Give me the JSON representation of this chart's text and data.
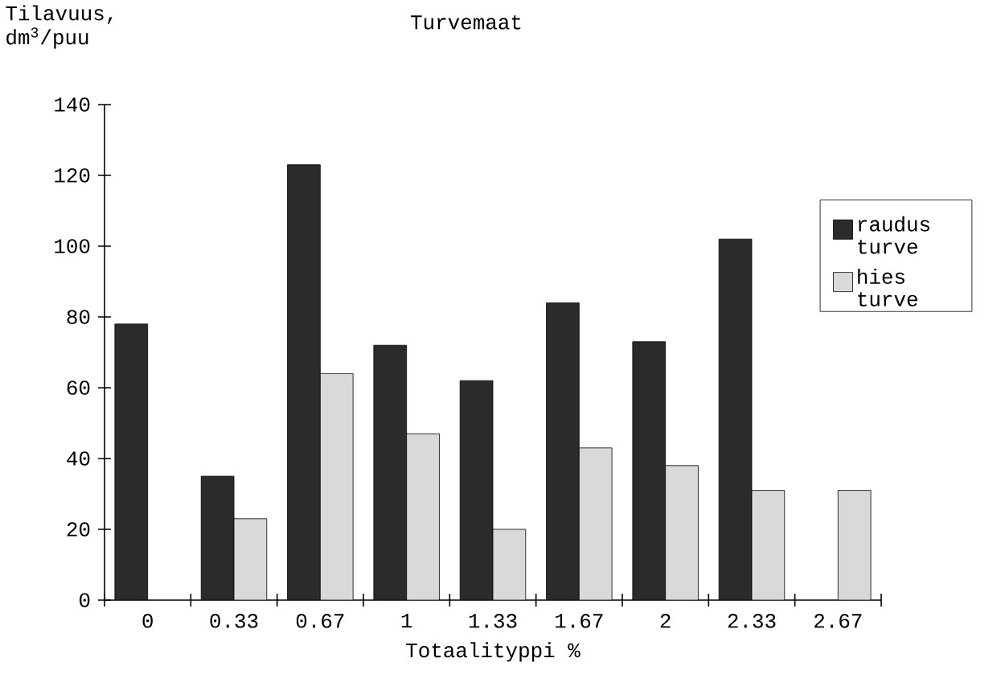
{
  "chart_data": {
    "type": "bar",
    "title": "Turvemaat",
    "xlabel": "Totaalityppi %",
    "ylabel": "Tilavuus, dm$^{3}$/puu",
    "categories": [
      "0",
      "0.33",
      "0.67",
      "1",
      "1.33",
      "1.67",
      "2",
      "2.33",
      "2.67"
    ],
    "series": [
      {
        "name": "raudus turve",
        "color": "#2b2b2b",
        "values": [
          78,
          35,
          123,
          72,
          62,
          84,
          73,
          102,
          null
        ]
      },
      {
        "name": "hies turve",
        "color": "#d9d9d9",
        "values": [
          null,
          23,
          64,
          47,
          20,
          43,
          38,
          31,
          31
        ]
      }
    ],
    "ylim": [
      0,
      140
    ],
    "yticks": [
      0,
      20,
      40,
      60,
      80,
      100,
      120,
      140
    ],
    "legend": "right"
  }
}
